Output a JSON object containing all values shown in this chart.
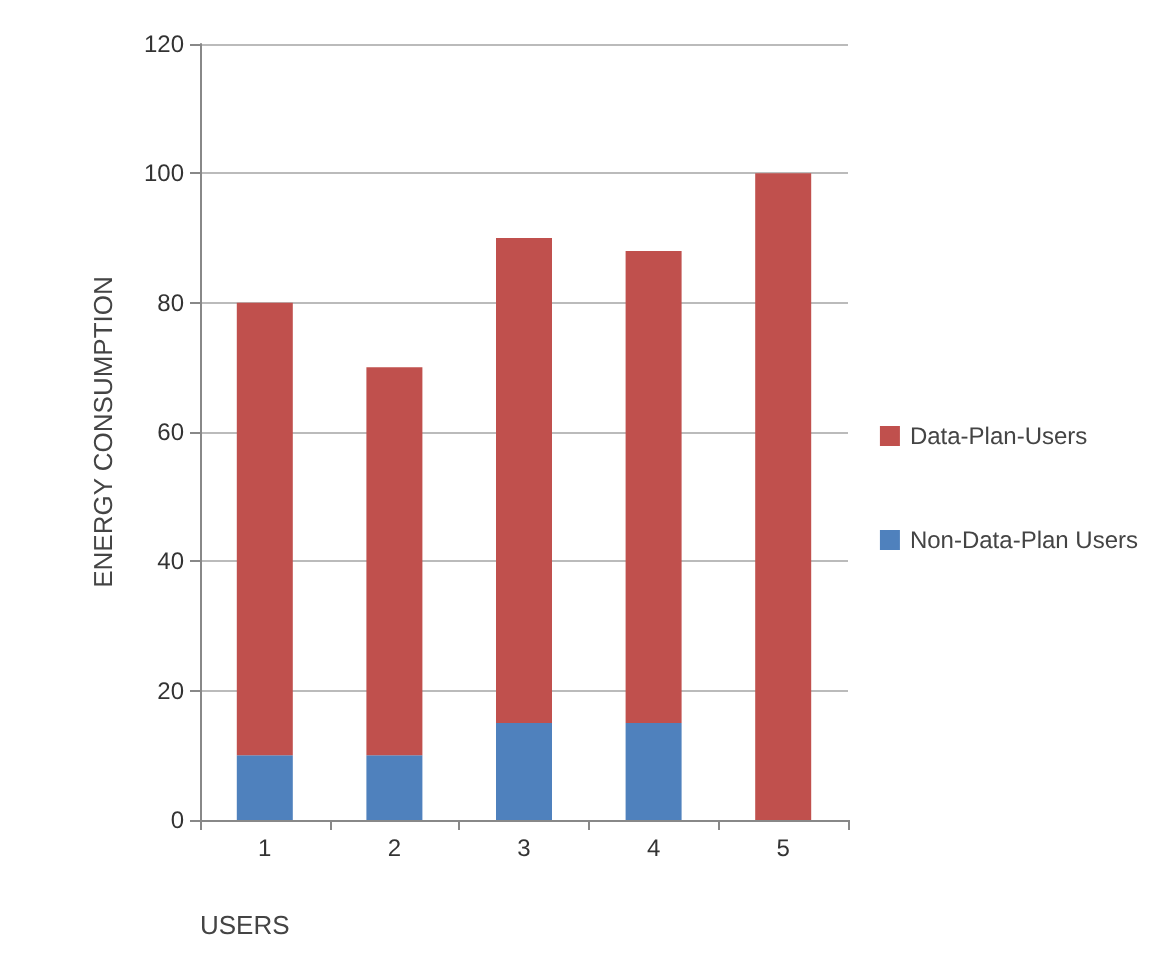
{
  "chart_data": {
    "type": "bar",
    "stacked": true,
    "xlabel": "USERS",
    "ylabel": "ENERGY CONSUMPTION",
    "categories": [
      "1",
      "2",
      "3",
      "4",
      "5"
    ],
    "series": [
      {
        "name": "Non-Data-Plan Users",
        "color": "#4f81bd",
        "values": [
          10,
          10,
          15,
          15,
          0
        ]
      },
      {
        "name": "Data-Plan-Users",
        "color": "#c0504d",
        "values": [
          70,
          60,
          75,
          73,
          100
        ]
      }
    ],
    "ylim": [
      0,
      120
    ],
    "yticks": [
      0,
      20,
      40,
      60,
      80,
      100,
      120
    ],
    "grid": "y",
    "legend": "right"
  }
}
